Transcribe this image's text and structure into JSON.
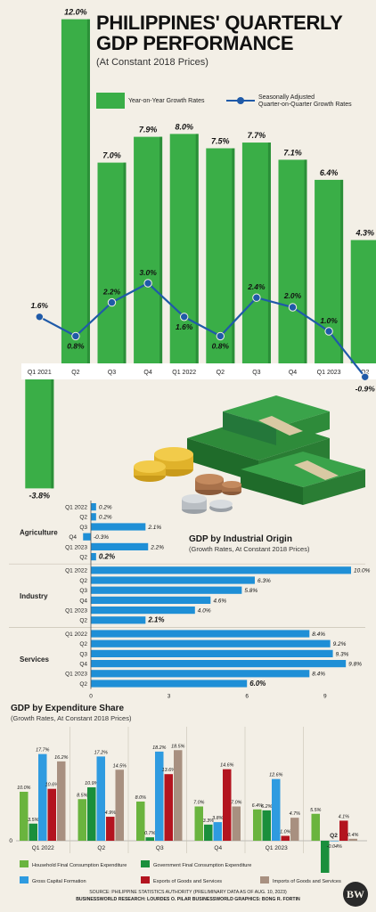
{
  "header": {
    "title_line1": "PHILIPPINES' QUARTERLY",
    "title_line2": "GDP PERFORMANCE",
    "subtitle": "(At Constant 2018 Prices)"
  },
  "legend_top": {
    "bar_label": "Year-on-Year Growth Rates",
    "line_label_1": "Seasonally Adjusted",
    "line_label_2": "Quarter-on-Quarter Growth Rates"
  },
  "colors": {
    "green": "#3aae47",
    "darkgreen": "#1f8a3a",
    "blue": "#1f5aa8",
    "lightblue": "#2f9be0",
    "red": "#b3141f",
    "taupe": "#a89080",
    "bg": "#f3efe6"
  },
  "chart_data": [
    {
      "type": "bar",
      "id": "quarterly",
      "categories": [
        "Q1 2021",
        "Q2",
        "Q3",
        "Q4",
        "Q1 2022",
        "Q2",
        "Q3",
        "Q4",
        "Q1 2023",
        "Q2"
      ],
      "series": [
        {
          "name": "Year-on-Year Growth Rates",
          "type": "bar",
          "values": [
            -3.8,
            12.0,
            7.0,
            7.9,
            8.0,
            7.5,
            7.7,
            7.1,
            6.4,
            4.3
          ],
          "labels": [
            "-3.8%",
            "12.0%",
            "7.0%",
            "7.9%",
            "8.0%",
            "7.5%",
            "7.7%",
            "7.1%",
            "6.4%",
            "4.3%"
          ]
        },
        {
          "name": "Seasonally Adjusted Quarter-on-Quarter Growth Rates",
          "type": "line",
          "values": [
            1.6,
            0.8,
            2.2,
            3.0,
            1.6,
            0.8,
            2.4,
            2.0,
            1.0,
            -0.9
          ],
          "labels": [
            "1.6%",
            "0.8%",
            "2.2%",
            "3.0%",
            "1.6%",
            "0.8%",
            "2.4%",
            "2.0%",
            "1.0%",
            "-0.9%"
          ]
        }
      ]
    },
    {
      "type": "bar",
      "id": "industrial",
      "orientation": "horizontal",
      "title": "GDP by Industrial Origin",
      "subtitle": "(Growth Rates, At Constant 2018 Prices)",
      "groups": [
        {
          "name": "Agriculture",
          "categories": [
            "Q1 2022",
            "Q2",
            "Q3",
            "Q4",
            "Q1 2023",
            "Q2"
          ],
          "values": [
            0.2,
            0.2,
            2.1,
            -0.3,
            2.2,
            0.2
          ],
          "labels": [
            "0.2%",
            "0.2%",
            "2.1%",
            "-0.3%",
            "2.2%",
            "0.2%"
          ]
        },
        {
          "name": "Industry",
          "categories": [
            "Q1 2022",
            "Q2",
            "Q3",
            "Q4",
            "Q1 2023",
            "Q2"
          ],
          "values": [
            10.0,
            6.3,
            5.8,
            4.6,
            4.0,
            2.1
          ],
          "labels": [
            "10.0%",
            "6.3%",
            "5.8%",
            "4.6%",
            "4.0%",
            "2.1%"
          ]
        },
        {
          "name": "Services",
          "categories": [
            "Q1 2022",
            "Q2",
            "Q3",
            "Q4",
            "Q1 2023",
            "Q2"
          ],
          "values": [
            8.4,
            9.2,
            9.3,
            9.8,
            8.4,
            6.0
          ],
          "labels": [
            "8.4%",
            "9.2%",
            "9.3%",
            "9.8%",
            "8.4%",
            "6.0%"
          ]
        }
      ],
      "xticks": [
        "0",
        "3",
        "6",
        "9"
      ],
      "xlim": [
        0,
        10.5
      ]
    },
    {
      "type": "bar",
      "id": "expenditure",
      "title": "GDP by Expenditure Share",
      "subtitle": "(Growth Rates, At Constant 2018 Prices)",
      "categories": [
        "Q1 2022",
        "Q2",
        "Q3",
        "Q4",
        "Q1 2023",
        "Q2"
      ],
      "yticks": [
        "0"
      ],
      "series": [
        {
          "name": "Household Final Consumption Expenditure",
          "color": "#6ab43e",
          "values": [
            10.0,
            8.5,
            8.0,
            7.0,
            6.4,
            5.5
          ],
          "labels": [
            "10.0%",
            "8.5%",
            "8.0%",
            "7.0%",
            "6.4%",
            "5.5%"
          ]
        },
        {
          "name": "Government Final Consumption Expenditure",
          "color": "#1a8f3c",
          "values": [
            3.5,
            10.9,
            0.7,
            3.3,
            6.2,
            -7.1
          ],
          "labels": [
            "3.5%",
            "10.9%",
            "0.7%",
            "3.3%",
            "6.2%",
            "-7.1%"
          ]
        },
        {
          "name": "Gross Capital Formation",
          "color": "#2f9be0",
          "values": [
            17.7,
            17.2,
            18.2,
            3.8,
            12.6,
            -0.04
          ],
          "labels": [
            "17.7%",
            "17.2%",
            "18.2%",
            "3.8%",
            "12.6%",
            "-0.04%"
          ]
        },
        {
          "name": "Exports of Goods and Services",
          "color": "#b3141f",
          "values": [
            10.6,
            4.9,
            13.6,
            14.6,
            1.0,
            4.1
          ],
          "labels": [
            "10.6%",
            "4.9%",
            "13.6%",
            "14.6%",
            "1.0%",
            "4.1%"
          ]
        },
        {
          "name": "Imports of Goods and Services",
          "color": "#a89080",
          "values": [
            16.2,
            14.5,
            18.5,
            7.0,
            4.7,
            0.4
          ],
          "labels": [
            "16.2%",
            "14.5%",
            "18.5%",
            "7.0%",
            "4.7%",
            "0.4%"
          ]
        }
      ]
    }
  ],
  "footer": {
    "source_line": "SOURCE: PHILIPPINE STATISTICS AUTHORITY (PRELIMINARY DATA AS OF AUG. 10, 2023)",
    "credits_line": "BUSINESSWORLD RESEARCH: LOURDES O. PILAR     BUSINESSWORLD GRAPHICS: BONG R. FORTIN",
    "logo": "BW"
  }
}
